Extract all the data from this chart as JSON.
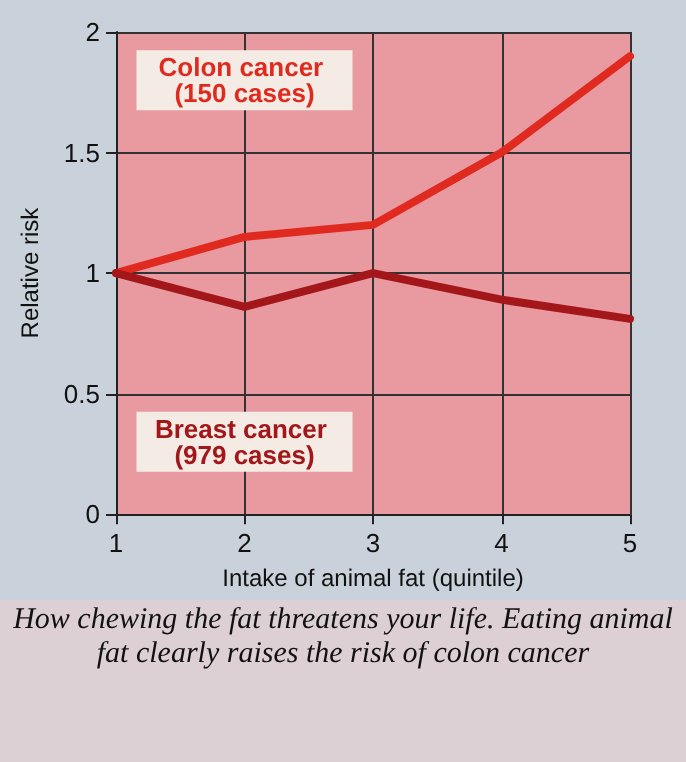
{
  "chart_data": {
    "type": "line",
    "xlabel": "Intake of animal fat (quintile)",
    "ylabel": "Relative risk",
    "x": [
      1,
      2,
      3,
      4,
      5
    ],
    "xlim": [
      1,
      5
    ],
    "xticks": [
      1,
      2,
      3,
      4,
      5
    ],
    "ylim": [
      0,
      2
    ],
    "yticks": [
      0,
      0.5,
      1,
      1.5,
      2
    ],
    "grid": true,
    "marker": "none",
    "line_style": "solid",
    "legend": false,
    "series": [
      {
        "name": "Colon cancer (150 cases)",
        "color": "#e02a20",
        "values": [
          1,
          1.15,
          1.2,
          1.5,
          1.9
        ]
      },
      {
        "name": "Breast cancer (979 cases)",
        "color": "#a3161a",
        "values": [
          1,
          0.86,
          1,
          0.89,
          0.81
        ]
      }
    ],
    "annotations": [
      "How chewing the fat threatens your life. Eating animal fat clearly raises the risk of colon cancer"
    ]
  }
}
